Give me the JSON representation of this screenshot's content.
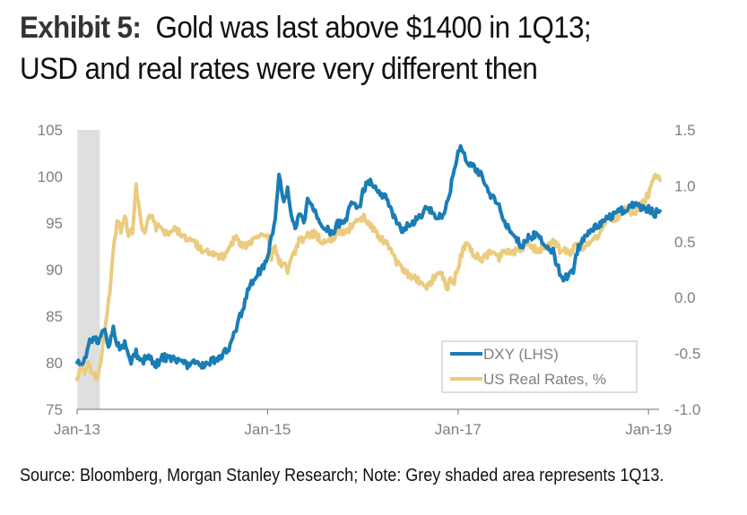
{
  "header": {
    "exhibit_label": "Exhibit 5:",
    "title_line1": "Gold was last above $1400 in 1Q13;",
    "title_line2": "USD and real rates were very different then"
  },
  "footer": {
    "source": "Source: Bloomberg, Morgan Stanley Research; Note: Grey shaded area represents 1Q13."
  },
  "chart_data": {
    "type": "line",
    "title": "Gold was last above $1400 in 1Q13; USD and real rates were very different then",
    "xlabel": "",
    "ylabel_left": "DXY",
    "ylabel_right": "US Real Rates, %",
    "x_range": [
      "2013-01",
      "2019-03"
    ],
    "x_ticks": [
      "Jan-13",
      "Jan-15",
      "Jan-17",
      "Jan-19"
    ],
    "x_tick_years": [
      0,
      2,
      4,
      6
    ],
    "x_end_years": 6.15,
    "y_left": {
      "range": [
        75,
        105
      ],
      "ticks": [
        "75",
        "80",
        "85",
        "90",
        "95",
        "100",
        "105"
      ],
      "tick_values": [
        75,
        80,
        85,
        90,
        95,
        100,
        105
      ]
    },
    "y_right": {
      "range": [
        -1.0,
        1.5
      ],
      "ticks": [
        "-1.0",
        "-0.5",
        "0.0",
        "0.5",
        "1.0",
        "1.5"
      ],
      "tick_values": [
        -1.0,
        -0.5,
        0.0,
        0.5,
        1.0,
        1.5
      ]
    },
    "grid": false,
    "legend": {
      "position": "bottom-right",
      "entries": [
        "DXY (LHS)",
        "US Real Rates, %"
      ]
    },
    "shaded_region": {
      "label": "1Q13",
      "from_years": 0.0,
      "to_years": 0.24,
      "color": "#d9d9d9"
    },
    "series": [
      {
        "name": "DXY (LHS)",
        "axis": "left",
        "color": "#1a7db5",
        "x_years": [
          0.0,
          0.04,
          0.08,
          0.12,
          0.17,
          0.21,
          0.25,
          0.29,
          0.33,
          0.38,
          0.42,
          0.46,
          0.5,
          0.54,
          0.58,
          0.62,
          0.67,
          0.71,
          0.75,
          0.79,
          0.83,
          0.88,
          0.92,
          0.96,
          1.0,
          1.08,
          1.17,
          1.25,
          1.33,
          1.42,
          1.5,
          1.58,
          1.62,
          1.67,
          1.71,
          1.75,
          1.79,
          1.83,
          1.88,
          1.92,
          1.96,
          2.0,
          2.04,
          2.08,
          2.12,
          2.17,
          2.21,
          2.25,
          2.29,
          2.33,
          2.38,
          2.42,
          2.5,
          2.58,
          2.67,
          2.75,
          2.83,
          2.88,
          2.92,
          2.96,
          3.0,
          3.08,
          3.17,
          3.25,
          3.33,
          3.42,
          3.5,
          3.58,
          3.67,
          3.75,
          3.83,
          3.88,
          3.92,
          3.96,
          4.0,
          4.04,
          4.08,
          4.17,
          4.25,
          4.33,
          4.42,
          4.5,
          4.58,
          4.67,
          4.75,
          4.83,
          4.92,
          5.0,
          5.04,
          5.08,
          5.12,
          5.17,
          5.21,
          5.25,
          5.33,
          5.42,
          5.5,
          5.58,
          5.67,
          5.75,
          5.83,
          5.92,
          6.0,
          6.06,
          6.12
        ],
        "values": [
          80.3,
          79.5,
          80.5,
          82.0,
          82.6,
          82.3,
          82.8,
          83.5,
          81.5,
          83.8,
          82.0,
          81.5,
          82.0,
          80.5,
          80.2,
          81.0,
          80.0,
          80.5,
          80.7,
          80.2,
          79.7,
          80.4,
          80.6,
          80.3,
          80.5,
          80.0,
          79.8,
          80.0,
          79.6,
          80.2,
          80.4,
          81.5,
          82.0,
          83.8,
          85.0,
          86.2,
          87.5,
          88.5,
          89.5,
          89.8,
          90.5,
          91.3,
          93.5,
          95.0,
          100.0,
          97.0,
          98.5,
          96.0,
          94.5,
          96.0,
          95.0,
          97.5,
          96.0,
          94.5,
          94.0,
          95.0,
          95.5,
          97.0,
          97.3,
          96.5,
          98.5,
          99.5,
          98.5,
          97.5,
          95.5,
          94.0,
          95.0,
          95.5,
          96.5,
          96.0,
          95.5,
          97.0,
          98.5,
          101.0,
          102.5,
          103.0,
          102.0,
          101.0,
          100.0,
          98.0,
          97.0,
          95.0,
          93.5,
          92.5,
          93.5,
          94.0,
          92.5,
          92.0,
          90.5,
          89.5,
          89.0,
          89.5,
          90.0,
          92.0,
          93.5,
          94.5,
          95.0,
          95.5,
          96.0,
          96.5,
          97.0,
          96.8,
          96.5,
          96.0,
          96.3
        ]
      },
      {
        "name": "US Real Rates, %",
        "axis": "right",
        "color": "#ebcb7f",
        "x_years": [
          0.0,
          0.04,
          0.08,
          0.12,
          0.17,
          0.21,
          0.25,
          0.29,
          0.33,
          0.38,
          0.42,
          0.46,
          0.5,
          0.54,
          0.58,
          0.62,
          0.67,
          0.71,
          0.75,
          0.79,
          0.83,
          0.88,
          0.92,
          0.96,
          1.0,
          1.08,
          1.17,
          1.25,
          1.33,
          1.42,
          1.5,
          1.58,
          1.67,
          1.75,
          1.83,
          1.88,
          1.92,
          1.96,
          2.0,
          2.04,
          2.08,
          2.12,
          2.17,
          2.21,
          2.25,
          2.29,
          2.33,
          2.38,
          2.42,
          2.5,
          2.58,
          2.67,
          2.75,
          2.83,
          2.92,
          3.0,
          3.08,
          3.17,
          3.25,
          3.33,
          3.42,
          3.5,
          3.58,
          3.67,
          3.75,
          3.83,
          3.88,
          3.92,
          3.96,
          4.0,
          4.04,
          4.08,
          4.17,
          4.25,
          4.33,
          4.42,
          4.5,
          4.58,
          4.67,
          4.75,
          4.83,
          4.92,
          5.0,
          5.08,
          5.17,
          5.25,
          5.33,
          5.42,
          5.5,
          5.58,
          5.67,
          5.75,
          5.83,
          5.92,
          6.0,
          6.06,
          6.12
        ],
        "values": [
          -0.7,
          -0.62,
          -0.65,
          -0.58,
          -0.7,
          -0.72,
          -0.6,
          -0.3,
          -0.05,
          0.4,
          0.7,
          0.6,
          0.75,
          0.55,
          0.6,
          0.98,
          0.65,
          0.6,
          0.7,
          0.72,
          0.62,
          0.65,
          0.58,
          0.55,
          0.62,
          0.58,
          0.52,
          0.47,
          0.42,
          0.38,
          0.35,
          0.4,
          0.55,
          0.45,
          0.5,
          0.55,
          0.52,
          0.57,
          0.55,
          0.35,
          0.45,
          0.3,
          0.32,
          0.25,
          0.35,
          0.4,
          0.5,
          0.52,
          0.55,
          0.58,
          0.48,
          0.52,
          0.6,
          0.58,
          0.7,
          0.72,
          0.65,
          0.55,
          0.48,
          0.35,
          0.25,
          0.2,
          0.15,
          0.1,
          0.18,
          0.2,
          0.08,
          0.15,
          0.15,
          0.28,
          0.4,
          0.48,
          0.38,
          0.35,
          0.4,
          0.35,
          0.42,
          0.4,
          0.45,
          0.48,
          0.42,
          0.45,
          0.5,
          0.42,
          0.4,
          0.48,
          0.45,
          0.5,
          0.58,
          0.72,
          0.7,
          0.8,
          0.75,
          0.82,
          0.92,
          1.08,
          1.05,
          0.95,
          0.85,
          0.8
        ]
      }
    ]
  }
}
